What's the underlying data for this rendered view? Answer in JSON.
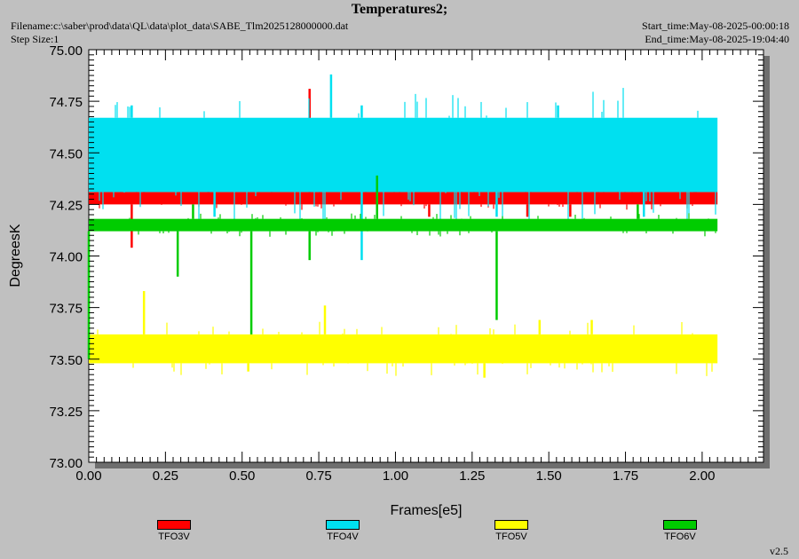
{
  "header": {
    "title": "Temperatures2;",
    "filename": "Filename:c:\\saber\\prod\\data\\QL\\data\\plot_data\\SABE_Tlm2025128000000.dat",
    "step_size": "Step Size:1",
    "start_time": "Start_time:May-08-2025-00:00:18",
    "end_time": "End_time:May-08-2025-19:04:40",
    "version": "v2.5"
  },
  "chart_data": {
    "type": "line",
    "title": "Temperatures2;",
    "xlabel": "Frames[e5]",
    "ylabel": "DegreesK",
    "xlim": [
      0.0,
      2.2
    ],
    "ylim": [
      73.0,
      75.0
    ],
    "x_ticks": [
      "0.00",
      "0.25",
      "0.50",
      "0.75",
      "1.00",
      "1.25",
      "1.50",
      "1.75",
      "2.00"
    ],
    "y_ticks": [
      "73.00",
      "73.25",
      "73.50",
      "73.75",
      "74.00",
      "74.25",
      "74.50",
      "74.75",
      "75.00"
    ],
    "x_end": 2.05,
    "grid": false,
    "legend_position": "bottom",
    "series": [
      {
        "name": "TFO3V",
        "color": "#ff0000",
        "levels": [
          74.25,
          74.31
        ],
        "spikes_high": [
          [
            0.72,
            74.81
          ],
          [
            0.39,
            74.38
          ],
          [
            0.18,
            74.38
          ],
          [
            1.8,
            74.38
          ]
        ],
        "spikes_low": [
          [
            0.14,
            74.04
          ],
          [
            1.11,
            74.19
          ],
          [
            1.43,
            74.19
          ],
          [
            1.57,
            74.19
          ]
        ]
      },
      {
        "name": "TFO4V",
        "color": "#00e0f0",
        "levels": [
          74.31,
          74.67
        ],
        "spikes_high": [
          [
            0.79,
            74.88
          ],
          [
            0.14,
            74.73
          ],
          [
            0.89,
            74.73
          ],
          [
            1.53,
            74.73
          ]
        ],
        "spikes_low": [
          [
            0.89,
            73.98
          ],
          [
            0.41,
            74.19
          ],
          [
            1.33,
            74.19
          ],
          [
            1.81,
            74.19
          ]
        ]
      },
      {
        "name": "TFO5V",
        "color": "#ffff00",
        "levels": [
          73.48,
          73.62
        ],
        "spikes_high": [
          [
            0.18,
            73.83
          ],
          [
            0.77,
            73.76
          ],
          [
            1.47,
            73.69
          ],
          [
            1.64,
            73.69
          ]
        ],
        "spikes_low": [
          [
            1.29,
            73.41
          ],
          [
            0.52,
            73.44
          ]
        ]
      },
      {
        "name": "TFO6V",
        "color": "#00cc00",
        "levels": [
          74.12,
          74.18
        ],
        "spikes_high": [
          [
            0.94,
            74.39
          ],
          [
            0.34,
            74.25
          ],
          [
            1.79,
            74.25
          ]
        ],
        "spikes_low": [
          [
            0.53,
            73.62
          ],
          [
            1.33,
            73.69
          ],
          [
            0.29,
            73.9
          ],
          [
            0.72,
            73.98
          ],
          [
            0.0,
            73.5
          ]
        ]
      }
    ]
  }
}
